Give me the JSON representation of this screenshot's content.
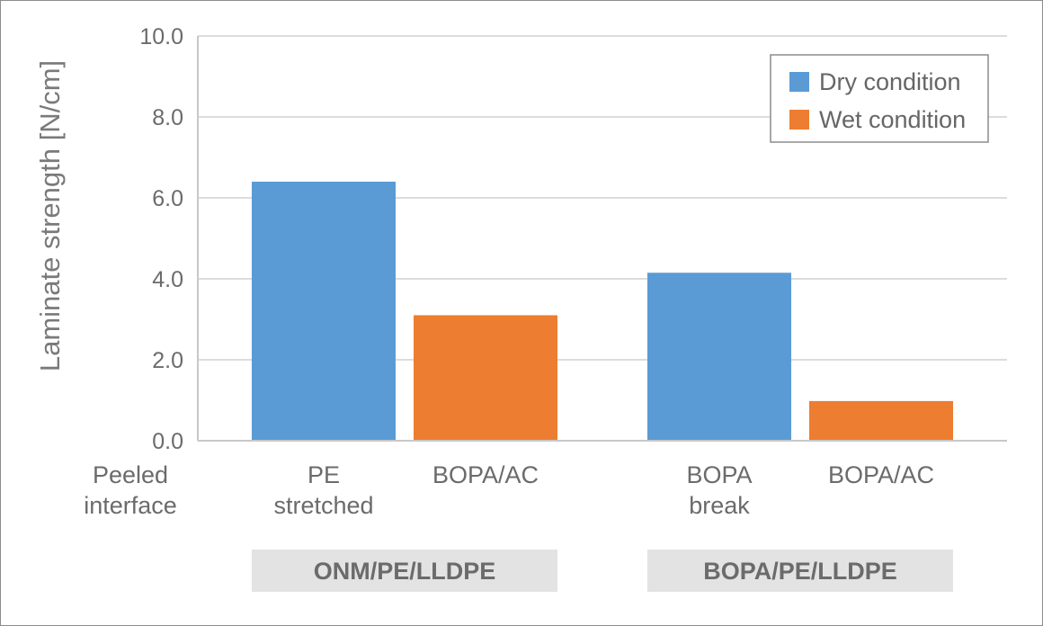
{
  "chart_data": {
    "type": "bar",
    "ylabel": "Laminate strength [N/cm]",
    "ylim": [
      0,
      10
    ],
    "yticks": [
      "0.0",
      "2.0",
      "4.0",
      "6.0",
      "8.0",
      "10.0"
    ],
    "row_label": "Peeled interface",
    "categories": [
      {
        "lines": [
          "PE",
          "stretched"
        ],
        "group": "ONM/PE/LLDPE"
      },
      {
        "lines": [
          "BOPA/AC"
        ],
        "group": "ONM/PE/LLDPE"
      },
      {
        "lines": [
          "BOPA",
          "break"
        ],
        "group": "BOPA/PE/LLDPE"
      },
      {
        "lines": [
          "BOPA/AC"
        ],
        "group": "BOPA/PE/LLDPE"
      }
    ],
    "bars": [
      {
        "label": "PE stretched",
        "series": "Dry condition",
        "value": 6.4
      },
      {
        "label": "BOPA/AC",
        "series": "Wet condition",
        "value": 3.1
      },
      {
        "label": "BOPA break",
        "series": "Dry condition",
        "value": 4.15
      },
      {
        "label": "BOPA/AC",
        "series": "Wet condition",
        "value": 0.98
      }
    ],
    "series": [
      {
        "name": "Dry condition",
        "color": "#5b9bd5"
      },
      {
        "name": "Wet condition",
        "color": "#ed7d31"
      }
    ],
    "groups": [
      "ONM/PE/LLDPE",
      "BOPA/PE/LLDPE"
    ],
    "legend_position": "top-right",
    "grid": true
  }
}
